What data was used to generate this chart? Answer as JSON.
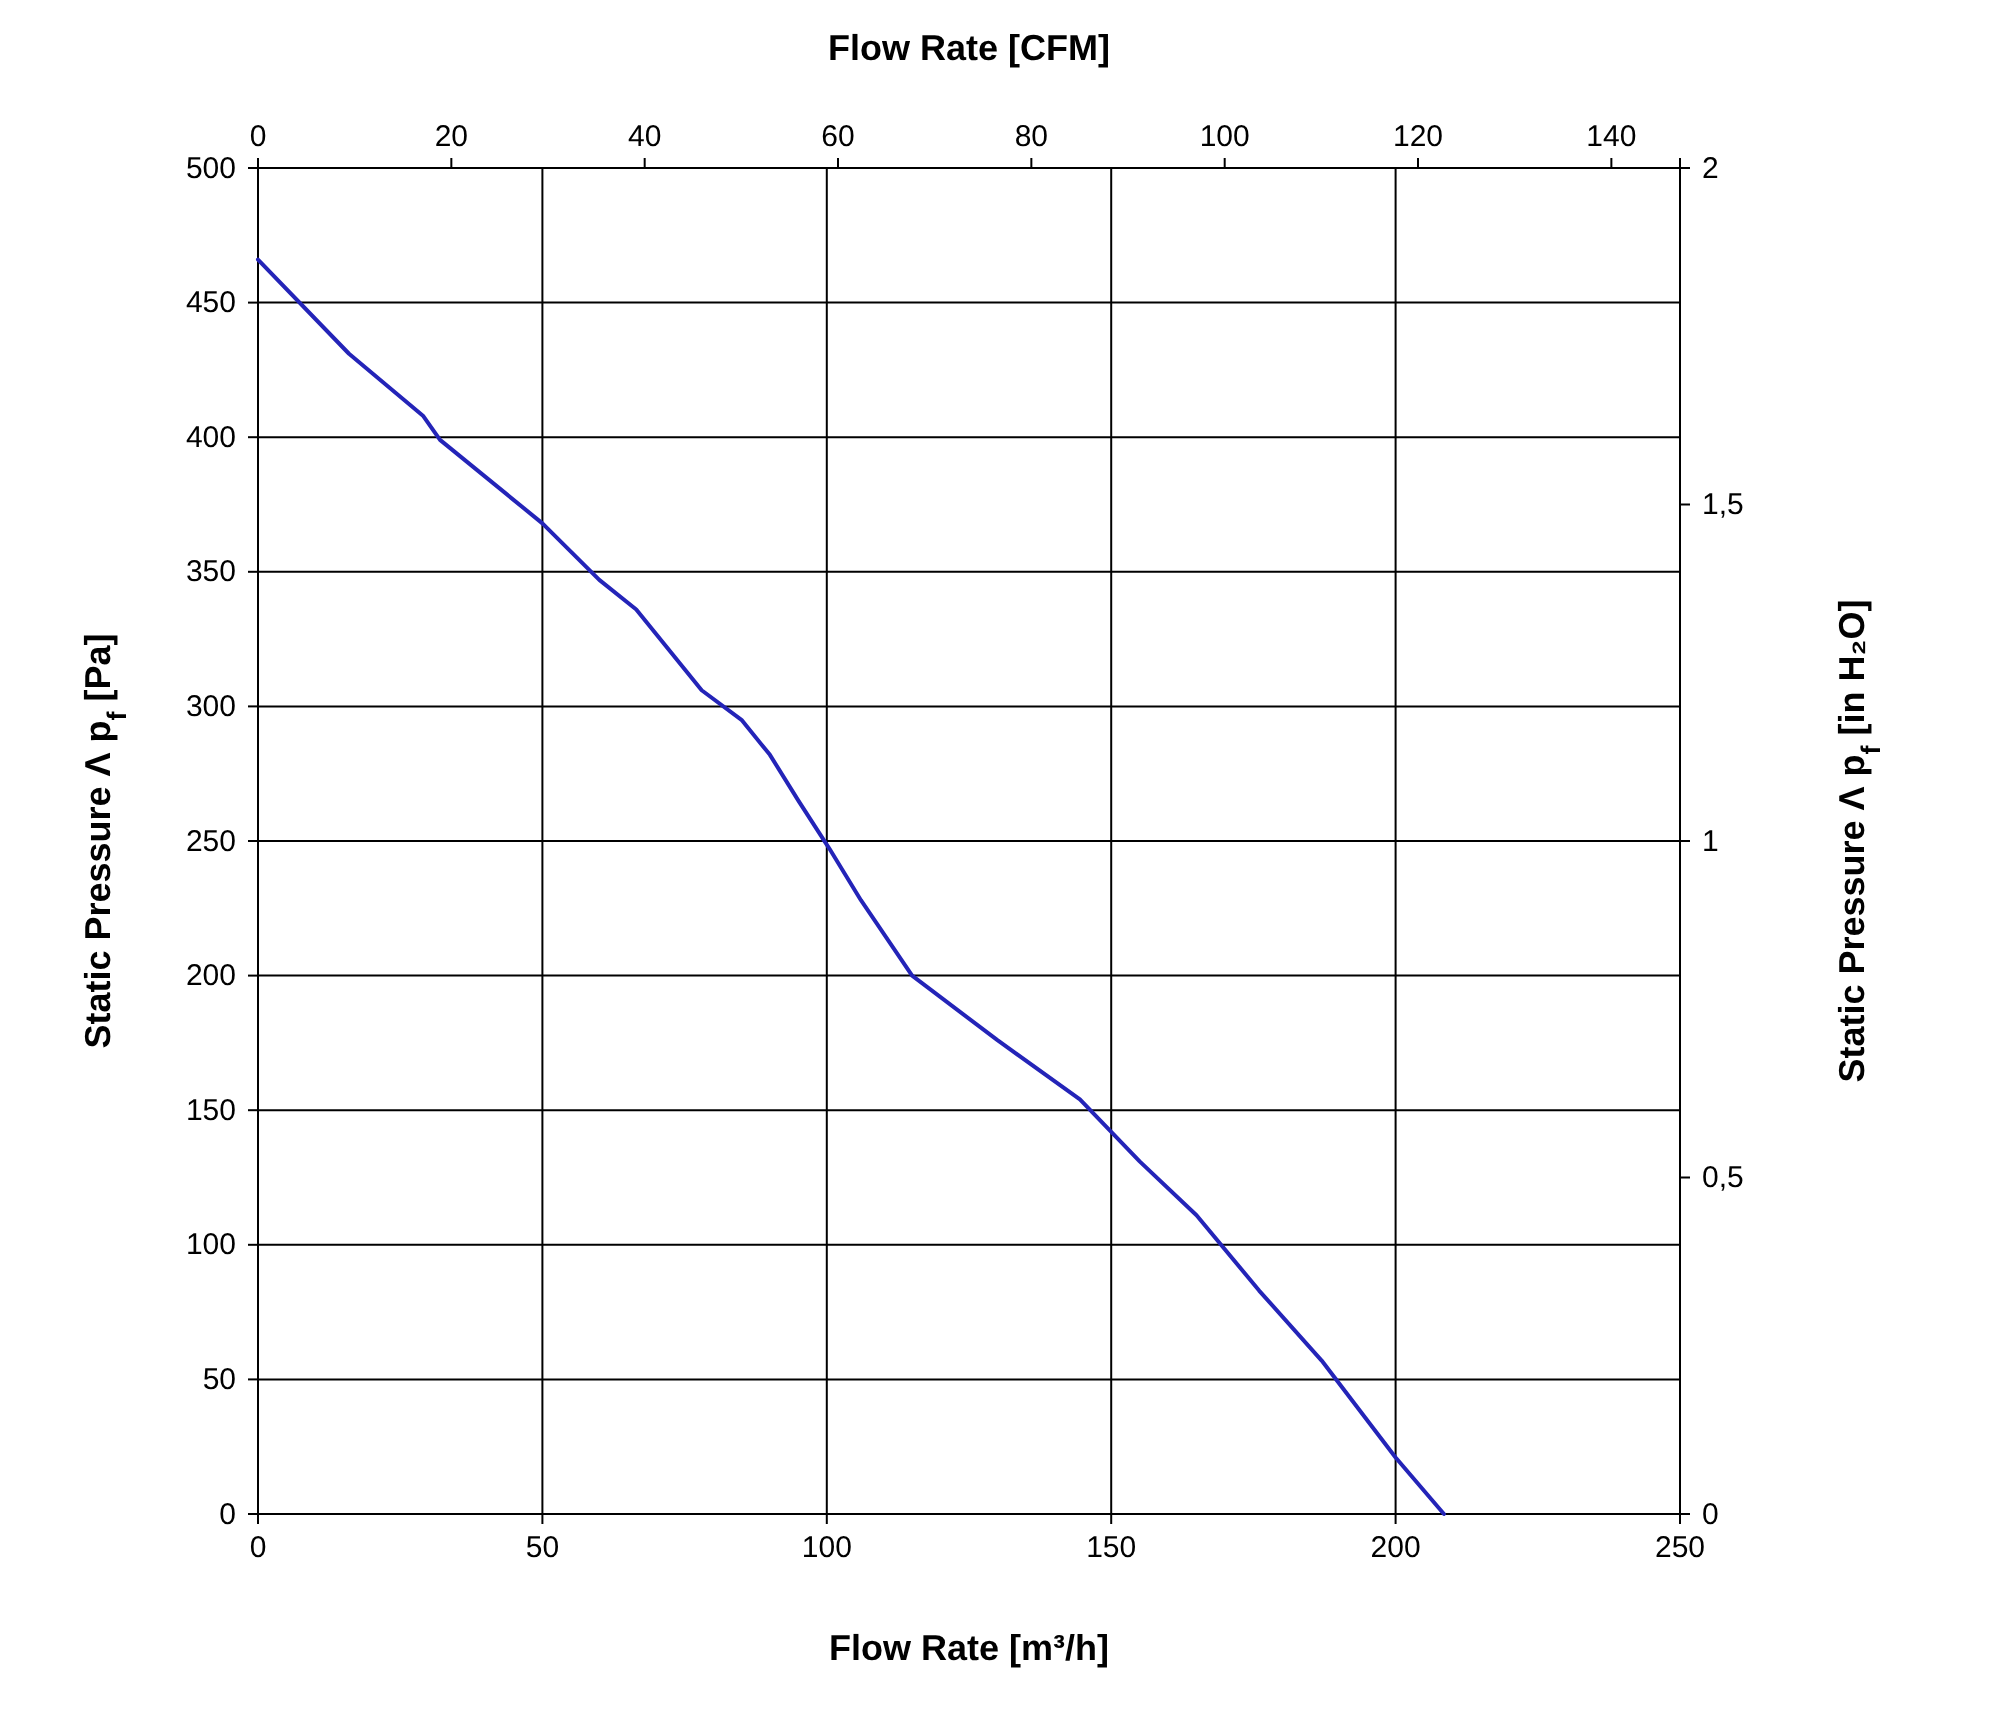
{
  "chart_data": {
    "type": "line",
    "xlabel": "Flow Rate [m³/h]",
    "x2label": "Flow Rate [CFM]",
    "ylabel": "Static Pressure Λ p$_{f}$ [Pa]",
    "y2label": "Static Pressure Λ p$_{f}$ [in H₂O]",
    "xlim": [
      0,
      250
    ],
    "xticks": [
      0,
      50,
      100,
      150,
      200,
      250
    ],
    "x2lim": [
      0,
      147.1
    ],
    "x2ticks": [
      0,
      20,
      40,
      60,
      80,
      100,
      120,
      140
    ],
    "ylim": [
      0,
      500
    ],
    "yticks": [
      0,
      50,
      100,
      150,
      200,
      250,
      300,
      350,
      400,
      450,
      500
    ],
    "y2lim": [
      0,
      2
    ],
    "y2ticks": [
      {
        "value": 0,
        "label": "0"
      },
      {
        "value": 0.5,
        "label": "0,5"
      },
      {
        "value": 1,
        "label": "1"
      },
      {
        "value": 1.5,
        "label": "1,5"
      },
      {
        "value": 2,
        "label": "2"
      }
    ],
    "grid": true,
    "marker": "none",
    "line_style": "solid",
    "series": [
      {
        "color": "#2424b8",
        "x": [
          0,
          16,
          29,
          32,
          50,
          60,
          66.5,
          78,
          85,
          90,
          95,
          100.5,
          106,
          115,
          130,
          144.5,
          155,
          165,
          176,
          187,
          200,
          208.5
        ],
        "values": [
          466,
          431,
          408,
          399,
          368,
          347,
          336,
          306,
          295,
          282,
          265,
          247,
          228,
          200,
          176,
          154,
          131,
          111,
          83,
          57,
          21,
          0
        ]
      }
    ]
  }
}
